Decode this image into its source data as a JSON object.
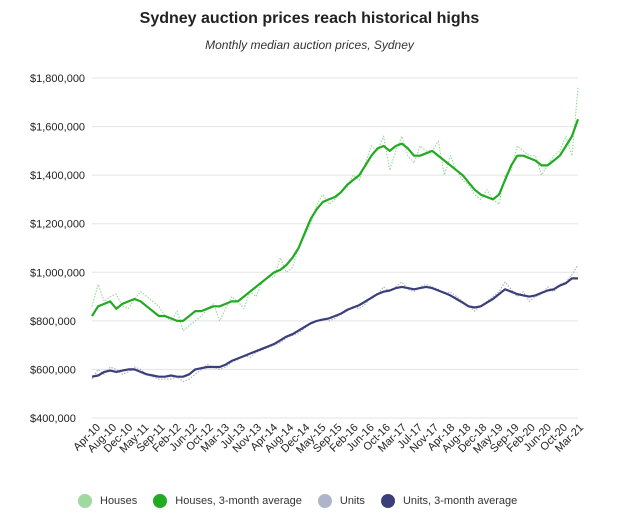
{
  "chart_data": {
    "type": "line",
    "title": "Sydney auction prices reach historical highs",
    "subtitle": "Monthly median auction prices, Sydney",
    "xlabel": "",
    "ylabel": "",
    "ylim": [
      400000,
      1800000
    ],
    "y_ticks": [
      {
        "value": 1800000,
        "label": "$1,800,000"
      },
      {
        "value": 1600000,
        "label": "$1,600,000"
      },
      {
        "value": 1400000,
        "label": "$1,400,000"
      },
      {
        "value": 1200000,
        "label": "$1,200,000"
      },
      {
        "value": 1000000,
        "label": "$1,000,000"
      },
      {
        "value": 800000,
        "label": "$800,000"
      },
      {
        "value": 600000,
        "label": "$600,000"
      },
      {
        "value": 400000,
        "label": "$400,000"
      }
    ],
    "x_ticks": [
      "Apr-10",
      "Aug-10",
      "Dec-10",
      "May-11",
      "Sep-11",
      "Feb-12",
      "Jun-12",
      "Oct-12",
      "Mar-13",
      "Jul-13",
      "Nov-13",
      "Apr-14",
      "Aug-14",
      "Dec-14",
      "May-15",
      "Sep-15",
      "Feb-16",
      "Jun-16",
      "Oct-16",
      "Mar-17",
      "Jul-17",
      "Nov-17",
      "Apr-18",
      "Aug-18",
      "Dec-18",
      "May-19",
      "Sep-19",
      "Feb-20",
      "Jun-20",
      "Oct-20",
      "Mar-21"
    ],
    "grid": true,
    "legend_position": "bottom",
    "series": [
      {
        "name": "Houses",
        "color": "#9fd9a0",
        "style": "dotted",
        "values": [
          860000,
          950000,
          880000,
          900000,
          910000,
          860000,
          850000,
          890000,
          920000,
          900000,
          880000,
          860000,
          820000,
          800000,
          840000,
          760000,
          780000,
          800000,
          820000,
          850000,
          870000,
          800000,
          850000,
          900000,
          880000,
          850000,
          920000,
          900000,
          960000,
          980000,
          980000,
          1060000,
          1000000,
          1020000,
          1100000,
          1150000,
          1200000,
          1280000,
          1320000,
          1280000,
          1300000,
          1330000,
          1350000,
          1400000,
          1380000,
          1450000,
          1520000,
          1500000,
          1560000,
          1420000,
          1500000,
          1560000,
          1480000,
          1450000,
          1520000,
          1500000,
          1500000,
          1540000,
          1400000,
          1480000,
          1420000,
          1380000,
          1360000,
          1320000,
          1300000,
          1340000,
          1300000,
          1280000,
          1400000,
          1420000,
          1520000,
          1500000,
          1480000,
          1480000,
          1400000,
          1440000,
          1480000,
          1500000,
          1560000,
          1480000,
          1760000
        ]
      },
      {
        "name": "Houses, 3-month average",
        "color": "#22aa22",
        "style": "solid",
        "values": [
          820000,
          860000,
          870000,
          880000,
          850000,
          870000,
          880000,
          890000,
          880000,
          860000,
          840000,
          820000,
          820000,
          810000,
          800000,
          800000,
          820000,
          840000,
          840000,
          850000,
          860000,
          860000,
          870000,
          880000,
          880000,
          900000,
          920000,
          940000,
          960000,
          980000,
          1000000,
          1010000,
          1030000,
          1060000,
          1100000,
          1160000,
          1220000,
          1260000,
          1290000,
          1300000,
          1310000,
          1330000,
          1360000,
          1380000,
          1400000,
          1440000,
          1480000,
          1510000,
          1520000,
          1500000,
          1520000,
          1530000,
          1510000,
          1480000,
          1480000,
          1490000,
          1500000,
          1480000,
          1460000,
          1440000,
          1420000,
          1400000,
          1370000,
          1340000,
          1320000,
          1310000,
          1300000,
          1320000,
          1380000,
          1440000,
          1480000,
          1480000,
          1470000,
          1460000,
          1440000,
          1440000,
          1460000,
          1480000,
          1520000,
          1560000,
          1630000
        ]
      },
      {
        "name": "Units",
        "color": "#b0b4c8",
        "style": "dotted",
        "values": [
          560000,
          600000,
          580000,
          610000,
          600000,
          580000,
          590000,
          610000,
          600000,
          580000,
          570000,
          560000,
          560000,
          560000,
          570000,
          550000,
          560000,
          580000,
          600000,
          620000,
          610000,
          600000,
          610000,
          630000,
          640000,
          660000,
          650000,
          670000,
          680000,
          690000,
          700000,
          710000,
          730000,
          740000,
          750000,
          770000,
          790000,
          800000,
          810000,
          800000,
          810000,
          830000,
          840000,
          860000,
          850000,
          870000,
          900000,
          910000,
          940000,
          920000,
          940000,
          960000,
          930000,
          920000,
          940000,
          950000,
          940000,
          930000,
          910000,
          920000,
          900000,
          880000,
          860000,
          840000,
          860000,
          880000,
          900000,
          920000,
          960000,
          930000,
          900000,
          920000,
          880000,
          900000,
          910000,
          940000,
          920000,
          950000,
          960000,
          990000,
          1030000
        ]
      },
      {
        "name": "Units, 3-month average",
        "color": "#3a3f7a",
        "style": "solid",
        "values": [
          570000,
          575000,
          590000,
          595000,
          590000,
          595000,
          600000,
          600000,
          590000,
          580000,
          575000,
          570000,
          570000,
          575000,
          570000,
          570000,
          580000,
          600000,
          605000,
          610000,
          610000,
          610000,
          620000,
          635000,
          645000,
          655000,
          665000,
          675000,
          685000,
          695000,
          705000,
          720000,
          735000,
          745000,
          760000,
          775000,
          790000,
          800000,
          805000,
          810000,
          820000,
          830000,
          845000,
          855000,
          865000,
          880000,
          895000,
          910000,
          920000,
          925000,
          935000,
          940000,
          935000,
          930000,
          935000,
          940000,
          935000,
          925000,
          915000,
          905000,
          890000,
          875000,
          860000,
          855000,
          860000,
          875000,
          890000,
          910000,
          930000,
          920000,
          910000,
          905000,
          900000,
          905000,
          915000,
          925000,
          930000,
          945000,
          955000,
          975000,
          975000
        ]
      }
    ]
  },
  "legend": {
    "items": [
      {
        "label": "Houses",
        "color": "#9fd9a0"
      },
      {
        "label": "Houses, 3-month average",
        "color": "#22aa22"
      },
      {
        "label": "Units",
        "color": "#b0b4c8"
      },
      {
        "label": "Units, 3-month average",
        "color": "#3a3f7a"
      }
    ]
  }
}
